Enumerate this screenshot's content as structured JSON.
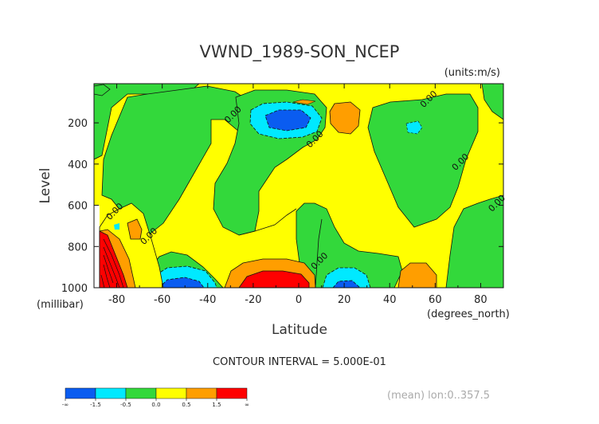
{
  "chart_data": {
    "type": "contour",
    "title": "VWND_1989-SON_NCEP",
    "units": "(units:m/s)",
    "xlabel": "Latitude",
    "ylabel": "Level",
    "x_unit_label": "(degrees_north)",
    "y_unit_label": "(millibar)",
    "xlim": [
      -90,
      90
    ],
    "ylim": [
      1000,
      10
    ],
    "x_ticks": [
      -80,
      -60,
      -40,
      -20,
      0,
      20,
      40,
      60,
      80
    ],
    "x_tick_labels": [
      "-80",
      "-60",
      "-40",
      "-20",
      "0",
      "20",
      "40",
      "60",
      "80"
    ],
    "y_ticks": [
      200,
      400,
      600,
      800,
      1000
    ],
    "y_tick_labels": [
      "200",
      "400",
      "600",
      "800",
      "1000"
    ],
    "contour_interval_text": "CONTOUR INTERVAL = 5.000E-01",
    "mean_text": "(mean) lon:0..357.5",
    "contour_labels": [
      {
        "text": "0.00",
        "lat": -28,
        "lev": 170
      },
      {
        "text": "0.00",
        "lat": 8,
        "lev": 290
      },
      {
        "text": "0.00",
        "lat": 58,
        "lev": 95
      },
      {
        "text": "0.00",
        "lat": 72,
        "lev": 400
      },
      {
        "text": "0.00",
        "lat": 88,
        "lev": 600
      },
      {
        "text": "0.00",
        "lat": -80,
        "lev": 640
      },
      {
        "text": "0.00",
        "lat": -65,
        "lev": 760
      },
      {
        "text": "0.00",
        "lat": 10,
        "lev": 880
      }
    ],
    "features": [
      {
        "lat": -13,
        "lev": 170,
        "value": -1.5,
        "desc": "upper-level northerly core"
      },
      {
        "lat": -12,
        "lev": 960,
        "value": 1.5,
        "desc": "low-level southerly max"
      },
      {
        "lat": -58,
        "lev": 960,
        "value": -1.5,
        "desc": "low-level northerly core"
      },
      {
        "lat": 22,
        "lev": 970,
        "value": -1.5,
        "desc": "low-level northerly core"
      },
      {
        "lat": 25,
        "lev": 150,
        "value": 0.5,
        "desc": "upper positive cell"
      },
      {
        "lat": 60,
        "lev": 980,
        "value": 0.5,
        "desc": "low-level positive cell"
      },
      {
        "lat": -88,
        "lev": 900,
        "value": 1.5,
        "desc": "antarctic low-level max"
      }
    ],
    "colorbar": {
      "colors": [
        "#0a5cf0",
        "#00e9ff",
        "#33d83b",
        "#ffff00",
        "#ff9e00",
        "#ff0000"
      ],
      "labels": [
        "-∞",
        "-1.5",
        "-0.5",
        "0.0",
        "0.5",
        "1.5",
        "∞"
      ]
    }
  }
}
